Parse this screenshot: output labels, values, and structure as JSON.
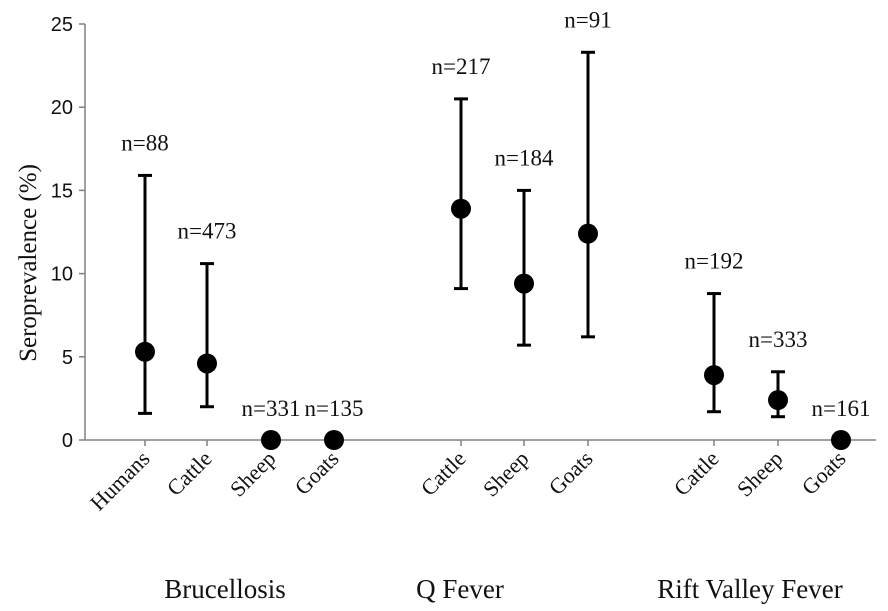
{
  "chart_data": {
    "type": "scatter",
    "title": "",
    "ylabel": "Seroprevalence (%)",
    "ylim": [
      0,
      25
    ],
    "yticks": [
      0,
      5,
      10,
      15,
      20,
      25
    ],
    "grid": false,
    "legend": "none",
    "points": [
      {
        "group": "Brucellosis",
        "category": "Humans",
        "value": 5.3,
        "lower": 1.6,
        "upper": 15.9,
        "n_label": "n=88"
      },
      {
        "group": "Brucellosis",
        "category": "Cattle",
        "value": 4.6,
        "lower": 2.0,
        "upper": 10.6,
        "n_label": "n=473"
      },
      {
        "group": "Brucellosis",
        "category": "Sheep",
        "value": 0,
        "lower": null,
        "upper": null,
        "n_label": "n=331"
      },
      {
        "group": "Brucellosis",
        "category": "Goats",
        "value": 0,
        "lower": null,
        "upper": null,
        "n_label": "n=135"
      },
      {
        "group": "Q Fever",
        "category": "Cattle",
        "value": 13.9,
        "lower": 9.1,
        "upper": 20.5,
        "n_label": "n=217"
      },
      {
        "group": "Q Fever",
        "category": "Sheep",
        "value": 9.4,
        "lower": 5.7,
        "upper": 15.0,
        "n_label": "n=184"
      },
      {
        "group": "Q Fever",
        "category": "Goats",
        "value": 12.4,
        "lower": 6.2,
        "upper": 23.3,
        "n_label": "n=91"
      },
      {
        "group": "Rift Valley Fever",
        "category": "Cattle",
        "value": 3.9,
        "lower": 1.7,
        "upper": 8.8,
        "n_label": "n=192"
      },
      {
        "group": "Rift Valley Fever",
        "category": "Sheep",
        "value": 2.4,
        "lower": 1.4,
        "upper": 4.1,
        "n_label": "n=333"
      },
      {
        "group": "Rift Valley Fever",
        "category": "Goats",
        "value": 0,
        "lower": null,
        "upper": null,
        "n_label": "n=161"
      }
    ],
    "groups": [
      "Brucellosis",
      "Q Fever",
      "Rift Valley Fever"
    ],
    "colors": {
      "marker": "#000000",
      "axis": "#808080",
      "text": "#111111"
    }
  }
}
